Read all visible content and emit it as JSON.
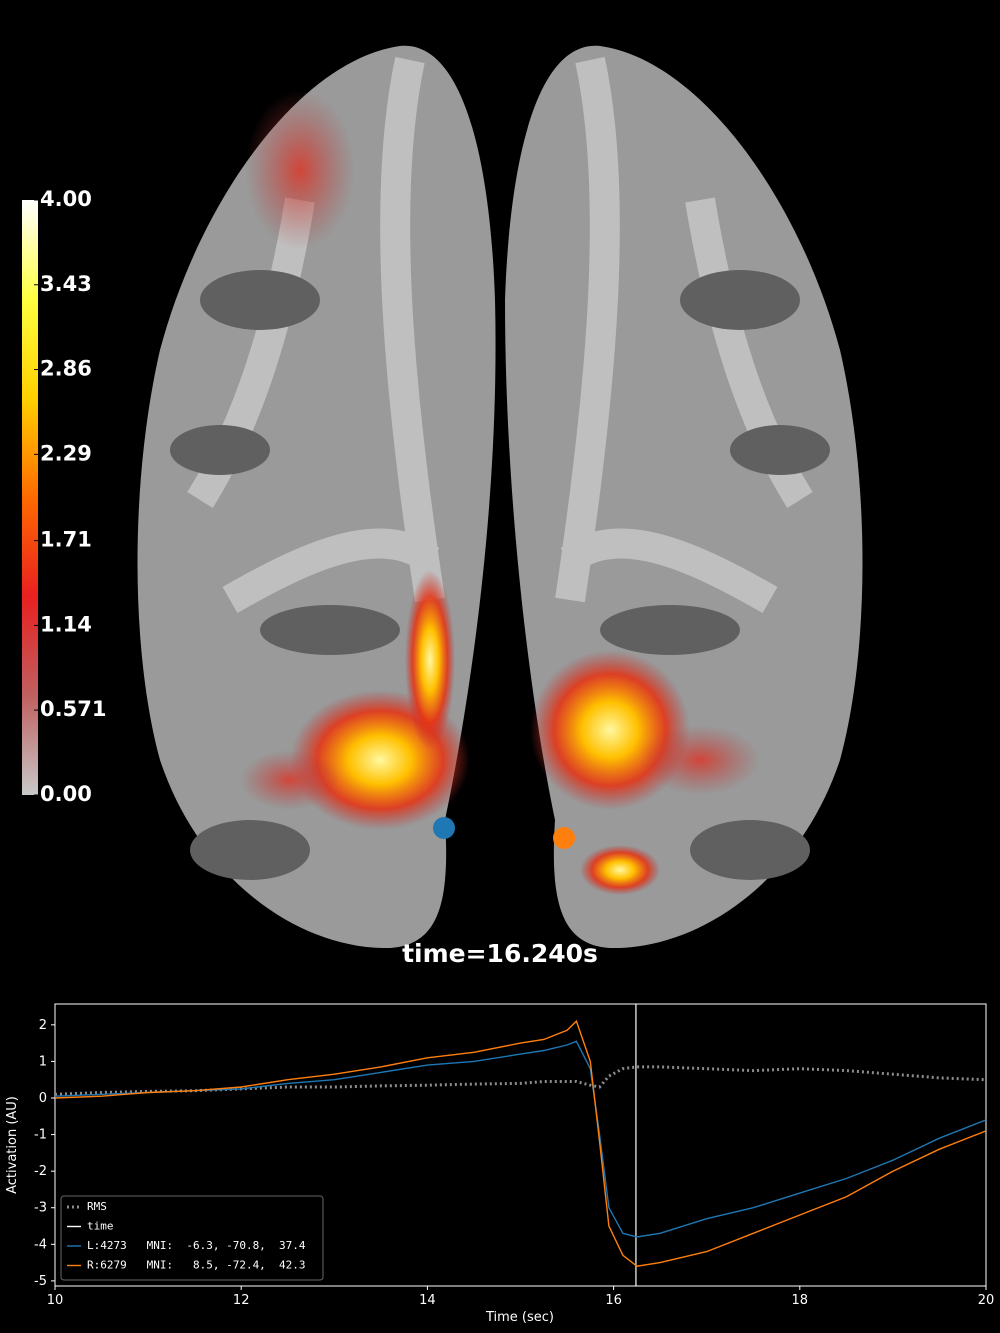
{
  "chart_data": [
    {
      "type": "colorbar",
      "ylim": [
        0,
        4
      ],
      "yticks": [
        {
          "value": 0,
          "label": "0.00"
        },
        0.571,
        1.14,
        1.71,
        2.29,
        2.86,
        3.43,
        {
          "value": 4,
          "label": "4.00"
        }
      ],
      "colors": [
        "#c8c8c8",
        "#c06060",
        "#e82020",
        "#ff6a00",
        "#ffd000",
        "#ffff40",
        "#ffffff"
      ],
      "annotation": "time=16.240s"
    },
    {
      "type": "line",
      "xlabel": "Time (sec)",
      "ylabel": "Activation (AU)",
      "x": [
        10,
        10.5,
        11,
        11.5,
        12,
        12.5,
        13,
        13.5,
        14,
        14.5,
        15,
        15.25,
        15.5,
        15.6,
        15.75,
        15.85,
        15.95,
        16.1,
        16.25,
        16.5,
        17,
        17.5,
        18,
        18.5,
        19,
        19.5,
        20
      ],
      "xlim": [
        10,
        20
      ],
      "xticks": [
        10,
        12,
        14,
        16,
        18,
        20
      ],
      "ylim": [
        -5.14,
        2.57
      ],
      "yticks": [
        -5,
        -4,
        -3,
        -2,
        -1,
        0,
        1,
        2
      ],
      "legend": "lower left",
      "series": [
        {
          "name": "RMS",
          "color": "#8c8c8c",
          "style": "dotted",
          "values": [
            0.1,
            0.15,
            0.18,
            0.2,
            0.25,
            0.3,
            0.3,
            0.33,
            0.35,
            0.38,
            0.4,
            0.45,
            0.45,
            0.45,
            0.35,
            0.3,
            0.6,
            0.8,
            0.85,
            0.85,
            0.8,
            0.75,
            0.8,
            0.75,
            0.65,
            0.55,
            0.5
          ]
        },
        {
          "name": "time",
          "color": "#ffffff",
          "style": "vline",
          "vline": 16.24
        },
        {
          "name": "L:4273   MNI:  -6.3, -70.8,  37.4",
          "color": "#1f77b4",
          "style": "solid",
          "values": [
            0.05,
            0.1,
            0.15,
            0.2,
            0.25,
            0.4,
            0.5,
            0.7,
            0.9,
            1.0,
            1.2,
            1.3,
            1.45,
            1.55,
            0.8,
            -1.0,
            -3.0,
            -3.7,
            -3.8,
            -3.7,
            -3.3,
            -3.0,
            -2.6,
            -2.2,
            -1.7,
            -1.1,
            -0.6
          ]
        },
        {
          "name": "R:6279   MNI:   8.5, -72.4,  42.3",
          "color": "#ff7f0e",
          "style": "solid",
          "values": [
            0,
            0.05,
            0.15,
            0.2,
            0.3,
            0.5,
            0.65,
            0.85,
            1.1,
            1.25,
            1.5,
            1.6,
            1.85,
            2.1,
            1.0,
            -1.2,
            -3.5,
            -4.3,
            -4.6,
            -4.5,
            -4.2,
            -3.7,
            -3.2,
            -2.7,
            -2.0,
            -1.4,
            -0.9
          ]
        }
      ]
    }
  ]
}
